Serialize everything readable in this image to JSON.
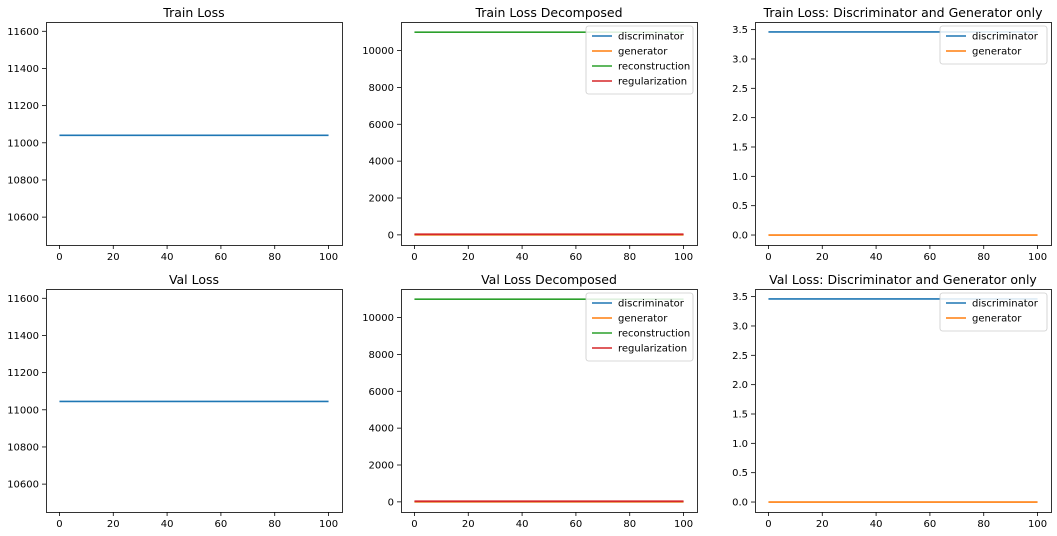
{
  "chart_data": [
    {
      "type": "line",
      "title": "Train Loss",
      "xlim": [
        -5,
        105
      ],
      "ylim": [
        10450,
        11650
      ],
      "xticks": [
        0,
        20,
        40,
        60,
        80,
        100
      ],
      "yticks": [
        10600,
        10800,
        11000,
        11200,
        11400,
        11600
      ],
      "series": [
        {
          "color": "#1f77b4",
          "x": [
            0,
            100
          ],
          "y": [
            11040,
            11040
          ]
        }
      ],
      "legend": null
    },
    {
      "type": "line",
      "title": "Train Loss Decomposed",
      "xlim": [
        -5,
        105
      ],
      "ylim": [
        -550,
        11550
      ],
      "xticks": [
        0,
        20,
        40,
        60,
        80,
        100
      ],
      "yticks": [
        0,
        2000,
        4000,
        6000,
        8000,
        10000
      ],
      "series": [
        {
          "name": "discriminator",
          "color": "#1f77b4",
          "x": [
            0,
            100
          ],
          "y": [
            3.46,
            3.46
          ]
        },
        {
          "name": "generator",
          "color": "#ff7f0e",
          "x": [
            0,
            100
          ],
          "y": [
            0,
            0
          ]
        },
        {
          "name": "reconstruction",
          "color": "#2ca02c",
          "x": [
            0,
            100
          ],
          "y": [
            11000,
            11000
          ]
        },
        {
          "name": "regularization",
          "color": "#d62728",
          "x": [
            0,
            100
          ],
          "y": [
            35,
            35
          ]
        }
      ],
      "legend": "top-right"
    },
    {
      "type": "line",
      "title": "Train Loss: Discriminator and Generator only",
      "xlim": [
        -5,
        105
      ],
      "ylim": [
        -0.17,
        3.63
      ],
      "xticks": [
        0,
        20,
        40,
        60,
        80,
        100
      ],
      "yticks": [
        0.0,
        0.5,
        1.0,
        1.5,
        2.0,
        2.5,
        3.0,
        3.5
      ],
      "ytick_decimals": 1,
      "series": [
        {
          "name": "discriminator",
          "color": "#1f77b4",
          "x": [
            0,
            100
          ],
          "y": [
            3.46,
            3.46
          ]
        },
        {
          "name": "generator",
          "color": "#ff7f0e",
          "x": [
            0,
            100
          ],
          "y": [
            0,
            0
          ]
        }
      ],
      "legend": "top-right"
    },
    {
      "type": "line",
      "title": "Val Loss",
      "xlim": [
        -5,
        105
      ],
      "ylim": [
        10450,
        11650
      ],
      "xticks": [
        0,
        20,
        40,
        60,
        80,
        100
      ],
      "yticks": [
        10600,
        10800,
        11000,
        11200,
        11400,
        11600
      ],
      "series": [
        {
          "color": "#1f77b4",
          "x": [
            0,
            100
          ],
          "y": [
            11045,
            11045
          ]
        }
      ],
      "legend": null
    },
    {
      "type": "line",
      "title": "Val Loss Decomposed",
      "xlim": [
        -5,
        105
      ],
      "ylim": [
        -550,
        11550
      ],
      "xticks": [
        0,
        20,
        40,
        60,
        80,
        100
      ],
      "yticks": [
        0,
        2000,
        4000,
        6000,
        8000,
        10000
      ],
      "series": [
        {
          "name": "discriminator",
          "color": "#1f77b4",
          "x": [
            0,
            100
          ],
          "y": [
            3.46,
            3.46
          ]
        },
        {
          "name": "generator",
          "color": "#ff7f0e",
          "x": [
            0,
            100
          ],
          "y": [
            0,
            0
          ]
        },
        {
          "name": "reconstruction",
          "color": "#2ca02c",
          "x": [
            0,
            100
          ],
          "y": [
            11000,
            11000
          ]
        },
        {
          "name": "regularization",
          "color": "#d62728",
          "x": [
            0,
            100
          ],
          "y": [
            35,
            35
          ]
        }
      ],
      "legend": "top-right"
    },
    {
      "type": "line",
      "title": "Val Loss: Discriminator and Generator only",
      "xlim": [
        -5,
        105
      ],
      "ylim": [
        -0.17,
        3.63
      ],
      "xticks": [
        0,
        20,
        40,
        60,
        80,
        100
      ],
      "yticks": [
        0.0,
        0.5,
        1.0,
        1.5,
        2.0,
        2.5,
        3.0,
        3.5
      ],
      "ytick_decimals": 1,
      "series": [
        {
          "name": "discriminator",
          "color": "#1f77b4",
          "x": [
            0,
            100
          ],
          "y": [
            3.46,
            3.46
          ]
        },
        {
          "name": "generator",
          "color": "#ff7f0e",
          "x": [
            0,
            100
          ],
          "y": [
            0,
            0
          ]
        }
      ],
      "legend": "top-right"
    }
  ]
}
